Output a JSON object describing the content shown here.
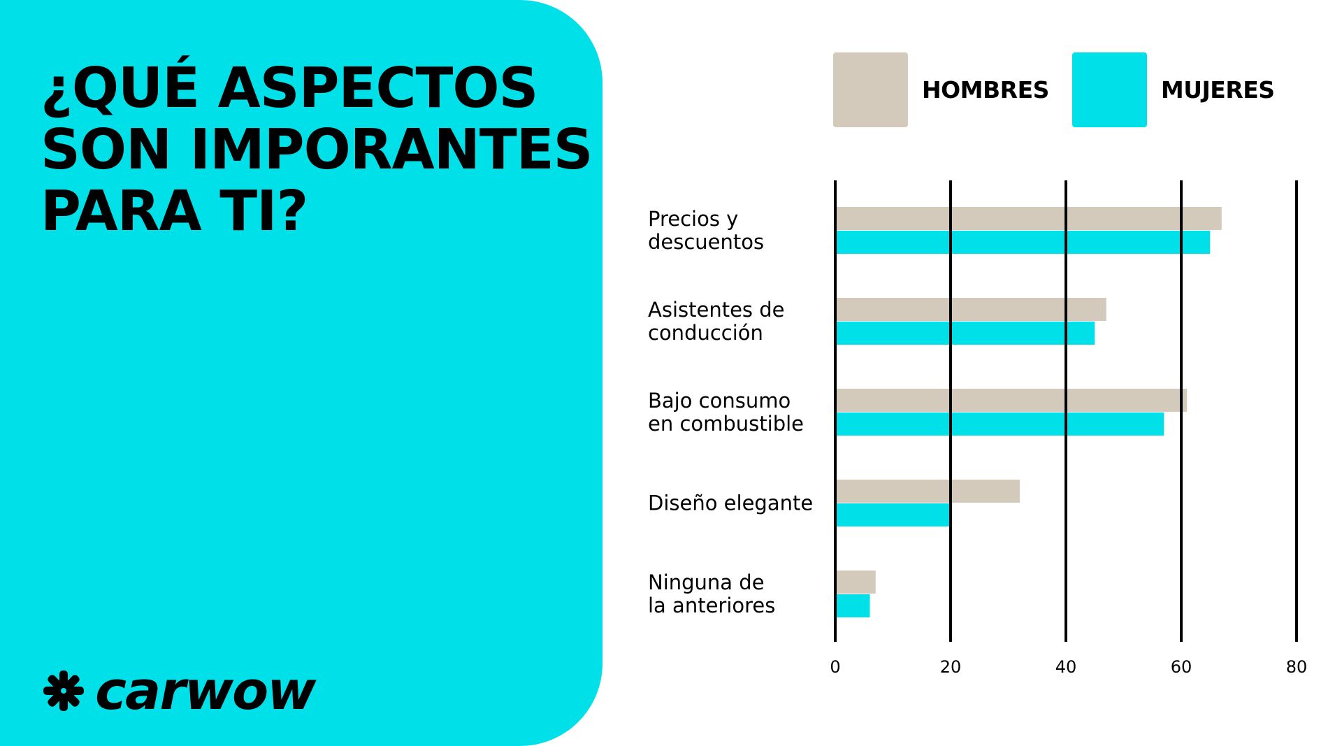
{
  "title": "¿QUÉ ASPECTOS\nSON IMPORANTES\nPARA TI?",
  "brand": {
    "name": "carwow",
    "icon": "carwow-logo-icon"
  },
  "colors": {
    "panel": "#00e0e8",
    "hombres": "#d3cabb",
    "mujeres": "#00e0e8",
    "axis": "#000000"
  },
  "legend": [
    {
      "label": "HOMBRES"
    },
    {
      "label": "MUJERES"
    }
  ],
  "chart_data": {
    "type": "bar",
    "orientation": "horizontal",
    "categories": [
      [
        "Precios y",
        "descuentos"
      ],
      [
        "Asistentes de",
        "conducción"
      ],
      [
        "Bajo consumo",
        "en combustible"
      ],
      [
        "Diseño elegante"
      ],
      [
        "Ninguna de",
        "la anteriores"
      ]
    ],
    "series": [
      {
        "name": "HOMBRES",
        "values": [
          67,
          47,
          61,
          32,
          7
        ]
      },
      {
        "name": "MUJERES",
        "values": [
          65,
          45,
          57,
          20,
          6
        ]
      }
    ],
    "xticks": [
      0,
      20,
      40,
      60,
      80
    ],
    "xlim": [
      0,
      80
    ],
    "grid": true,
    "legend_position": "top"
  }
}
